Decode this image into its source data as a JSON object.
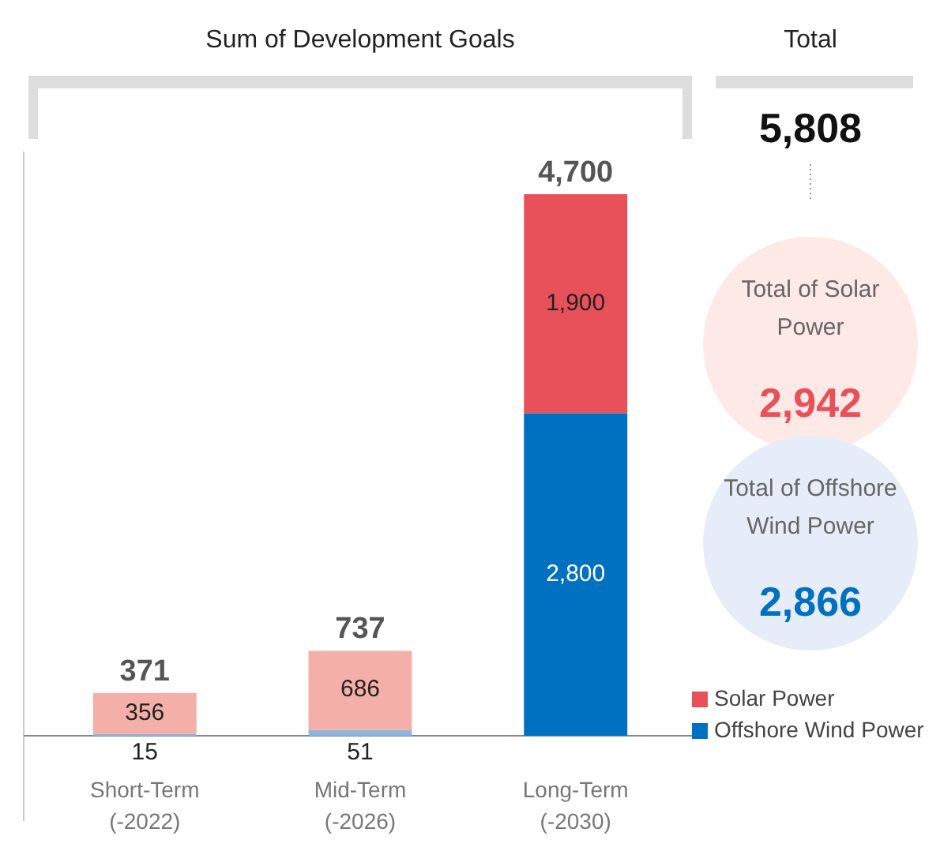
{
  "chart_data": {
    "type": "bar",
    "stacked": true,
    "categories": [
      "Short-Term\n(-2022)",
      "Mid-Term\n(-2026)",
      "Long-Term\n(-2030)"
    ],
    "series": [
      {
        "name": "Offshore Wind Power",
        "color": "#0070c0",
        "colors": [
          "#8fb4e0",
          "#8fb4e0",
          "#0070c0"
        ],
        "values": [
          15,
          51,
          2800
        ],
        "value_labels": [
          "15",
          "51",
          "2,800"
        ]
      },
      {
        "name": "Solar Power",
        "color": "#e8515a",
        "colors": [
          "#f4b0a8",
          "#f4b0a8",
          "#e8515a"
        ],
        "values": [
          356,
          686,
          1900
        ],
        "value_labels": [
          "356",
          "686",
          "1,900"
        ]
      }
    ],
    "totals": [
      "371",
      "737",
      "4,700"
    ],
    "legend": "bottom right",
    "annotations": [
      "Sum of Development Goals",
      "Total",
      "5,808",
      "Total of Solar Power",
      "2,942",
      "Total of Offshore Wind Power",
      "2,866"
    ]
  }
}
